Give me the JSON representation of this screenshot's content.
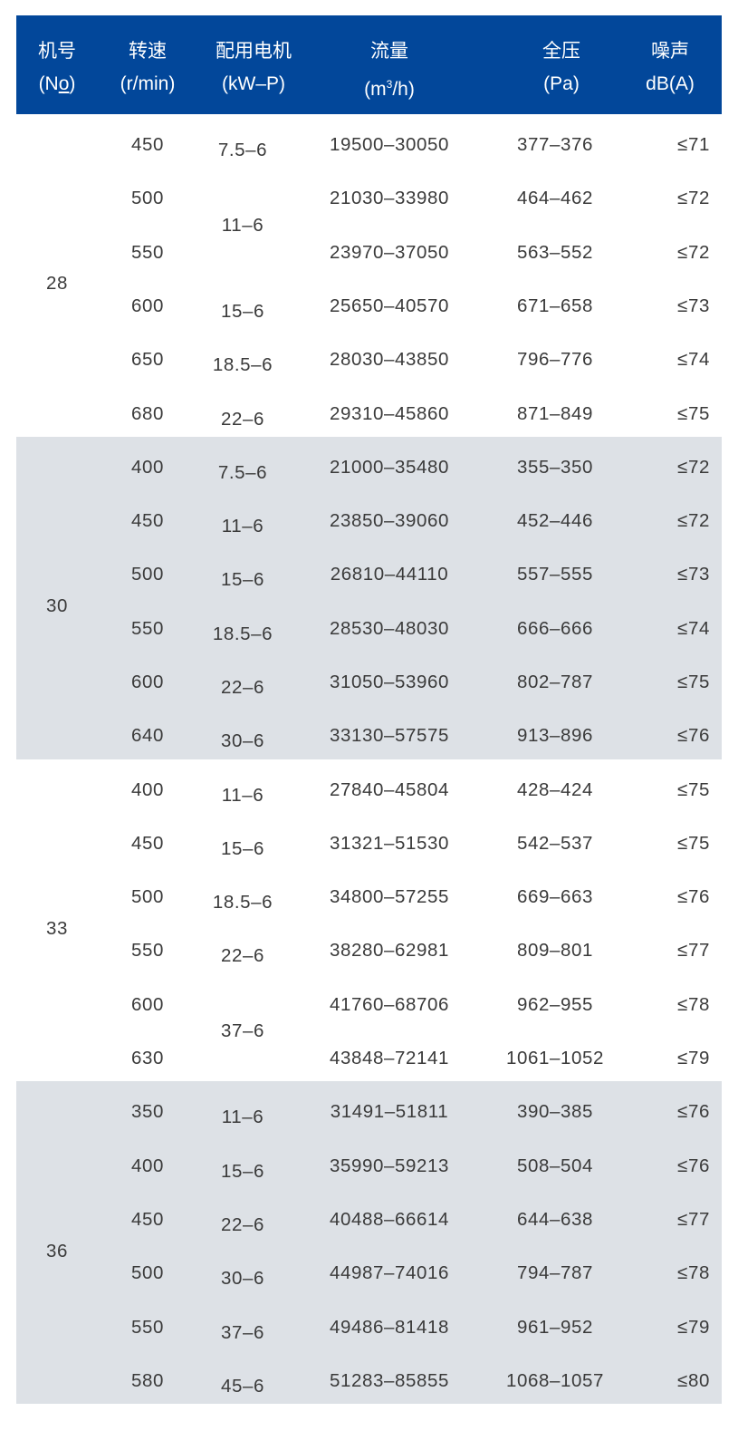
{
  "header": {
    "no": {
      "title": "机号",
      "unit": "(No)"
    },
    "speed": {
      "title": "转速",
      "unit": "(r/min)"
    },
    "motor": {
      "title": "配用电机",
      "unit": "(kW–P)"
    },
    "flow": {
      "title": "流量",
      "unit_pre": "(m",
      "unit_sup": "3",
      "unit_post": "/h)"
    },
    "pressure": {
      "title": "全压",
      "unit": "(Pa)"
    },
    "noise": {
      "title": "噪声",
      "unit": "dB(A)"
    }
  },
  "colors": {
    "header_bg": "#02479a",
    "shaded_bg": "#dde1e6",
    "text": "#3a3a3a"
  },
  "groups": [
    {
      "no": "28",
      "shaded": false,
      "rows": [
        {
          "speed": "450",
          "flow": "19500–30050",
          "pressure": "377–376",
          "noise": "≤71"
        },
        {
          "speed": "500",
          "flow": "21030–33980",
          "pressure": "464–462",
          "noise": "≤72"
        },
        {
          "speed": "550",
          "flow": "23970–37050",
          "pressure": "563–552",
          "noise": "≤72"
        },
        {
          "speed": "600",
          "flow": "25650–40570",
          "pressure": "671–658",
          "noise": "≤73"
        },
        {
          "speed": "650",
          "flow": "28030–43850",
          "pressure": "796–776",
          "noise": "≤74"
        },
        {
          "speed": "680",
          "flow": "29310–45860",
          "pressure": "871–849",
          "noise": "≤75"
        }
      ],
      "motors": [
        {
          "label": "7.5–6",
          "span": 1
        },
        {
          "label": "11–6",
          "span": 2
        },
        {
          "label": "15–6",
          "span": 1
        },
        {
          "label": "18.5–6",
          "span": 1
        },
        {
          "label": "22–6",
          "span": 1
        }
      ]
    },
    {
      "no": "30",
      "shaded": true,
      "rows": [
        {
          "speed": "400",
          "flow": "21000–35480",
          "pressure": "355–350",
          "noise": "≤72"
        },
        {
          "speed": "450",
          "flow": "23850–39060",
          "pressure": "452–446",
          "noise": "≤72"
        },
        {
          "speed": "500",
          "flow": "26810–44110",
          "pressure": "557–555",
          "noise": "≤73"
        },
        {
          "speed": "550",
          "flow": "28530–48030",
          "pressure": "666–666",
          "noise": "≤74"
        },
        {
          "speed": "600",
          "flow": "31050–53960",
          "pressure": "802–787",
          "noise": "≤75"
        },
        {
          "speed": "640",
          "flow": "33130–57575",
          "pressure": "913–896",
          "noise": "≤76"
        }
      ],
      "motors": [
        {
          "label": "7.5–6",
          "span": 1
        },
        {
          "label": "11–6",
          "span": 1
        },
        {
          "label": "15–6",
          "span": 1
        },
        {
          "label": "18.5–6",
          "span": 1
        },
        {
          "label": "22–6",
          "span": 1
        },
        {
          "label": "30–6",
          "span": 1
        }
      ]
    },
    {
      "no": "33",
      "shaded": false,
      "rows": [
        {
          "speed": "400",
          "flow": "27840–45804",
          "pressure": "428–424",
          "noise": "≤75"
        },
        {
          "speed": "450",
          "flow": "31321–51530",
          "pressure": "542–537",
          "noise": "≤75"
        },
        {
          "speed": "500",
          "flow": "34800–57255",
          "pressure": "669–663",
          "noise": "≤76"
        },
        {
          "speed": "550",
          "flow": "38280–62981",
          "pressure": "809–801",
          "noise": "≤77"
        },
        {
          "speed": "600",
          "flow": "41760–68706",
          "pressure": "962–955",
          "noise": "≤78"
        },
        {
          "speed": "630",
          "flow": "43848–72141",
          "pressure": "1061–1052",
          "noise": "≤79"
        }
      ],
      "motors": [
        {
          "label": "11–6",
          "span": 1
        },
        {
          "label": "15–6",
          "span": 1
        },
        {
          "label": "18.5–6",
          "span": 1
        },
        {
          "label": "22–6",
          "span": 1
        },
        {
          "label": "37–6",
          "span": 2
        }
      ]
    },
    {
      "no": "36",
      "shaded": true,
      "rows": [
        {
          "speed": "350",
          "flow": "31491–51811",
          "pressure": "390–385",
          "noise": "≤76"
        },
        {
          "speed": "400",
          "flow": "35990–59213",
          "pressure": "508–504",
          "noise": "≤76"
        },
        {
          "speed": "450",
          "flow": "40488–66614",
          "pressure": "644–638",
          "noise": "≤77"
        },
        {
          "speed": "500",
          "flow": "44987–74016",
          "pressure": "794–787",
          "noise": "≤78"
        },
        {
          "speed": "550",
          "flow": "49486–81418",
          "pressure": "961–952",
          "noise": "≤79"
        },
        {
          "speed": "580",
          "flow": "51283–85855",
          "pressure": "1068–1057",
          "noise": "≤80"
        }
      ],
      "motors": [
        {
          "label": "11–6",
          "span": 1
        },
        {
          "label": "15–6",
          "span": 1
        },
        {
          "label": "22–6",
          "span": 1
        },
        {
          "label": "30–6",
          "span": 1
        },
        {
          "label": "37–6",
          "span": 1
        },
        {
          "label": "45–6",
          "span": 1
        }
      ]
    }
  ]
}
